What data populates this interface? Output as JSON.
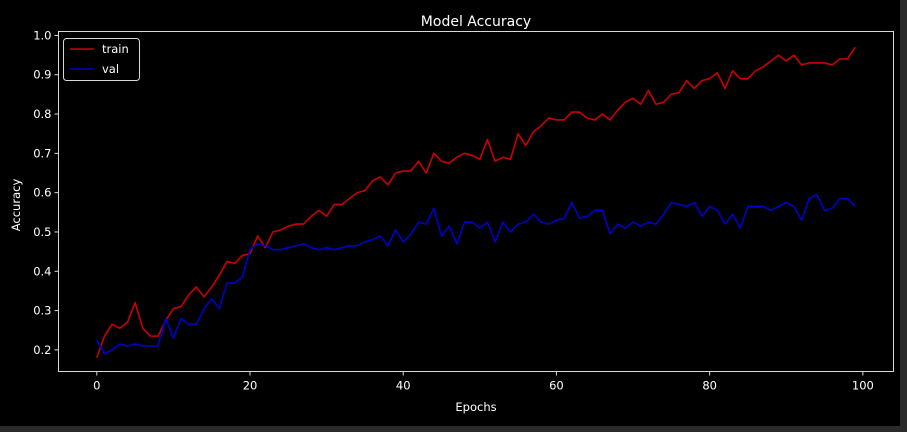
{
  "colors": {
    "figure_bg": "#000000",
    "page_bg": "#2b2b2b",
    "axes_edge": "#d8d8d8",
    "text": "#ffffff",
    "train": "#cc0000",
    "val": "#0000cc"
  },
  "chart_data": {
    "type": "line",
    "title": "Model Accuracy",
    "xlabel": "Epochs",
    "ylabel": "Accuracy",
    "xlim": [
      -5,
      104
    ],
    "ylim": [
      0.145,
      1.01
    ],
    "xticks": [
      0,
      20,
      40,
      60,
      80,
      100
    ],
    "yticks": [
      0.2,
      0.3,
      0.4,
      0.5,
      0.6,
      0.7,
      0.8,
      0.9,
      1.0
    ],
    "grid": false,
    "legend": {
      "placement": "top-left"
    },
    "series": [
      {
        "name": "train",
        "color": "#cc0000",
        "x": [
          0,
          1,
          2,
          3,
          4,
          5,
          6,
          7,
          8,
          9,
          10,
          11,
          12,
          13,
          14,
          15,
          16,
          17,
          18,
          19,
          20,
          21,
          22,
          23,
          24,
          25,
          26,
          27,
          28,
          29,
          30,
          31,
          32,
          33,
          34,
          35,
          36,
          37,
          38,
          39,
          40,
          41,
          42,
          43,
          44,
          45,
          46,
          47,
          48,
          49,
          50,
          51,
          52,
          53,
          54,
          55,
          56,
          57,
          58,
          59,
          60,
          61,
          62,
          63,
          64,
          65,
          66,
          67,
          68,
          69,
          70,
          71,
          72,
          73,
          74,
          75,
          76,
          77,
          78,
          79,
          80,
          81,
          82,
          83,
          84,
          85,
          86,
          87,
          88,
          89,
          90,
          91,
          92,
          93,
          94,
          95,
          96,
          97,
          98,
          99
        ],
        "values": [
          0.18,
          0.235,
          0.265,
          0.255,
          0.27,
          0.32,
          0.255,
          0.235,
          0.235,
          0.275,
          0.305,
          0.31,
          0.34,
          0.36,
          0.335,
          0.36,
          0.39,
          0.425,
          0.42,
          0.44,
          0.445,
          0.49,
          0.46,
          0.5,
          0.505,
          0.515,
          0.52,
          0.52,
          0.54,
          0.555,
          0.54,
          0.57,
          0.57,
          0.585,
          0.6,
          0.605,
          0.63,
          0.64,
          0.62,
          0.65,
          0.655,
          0.655,
          0.68,
          0.65,
          0.7,
          0.68,
          0.675,
          0.69,
          0.7,
          0.695,
          0.685,
          0.735,
          0.68,
          0.69,
          0.685,
          0.75,
          0.72,
          0.755,
          0.77,
          0.79,
          0.785,
          0.785,
          0.805,
          0.805,
          0.79,
          0.785,
          0.8,
          0.785,
          0.81,
          0.83,
          0.84,
          0.825,
          0.86,
          0.825,
          0.83,
          0.85,
          0.855,
          0.885,
          0.865,
          0.885,
          0.89,
          0.905,
          0.865,
          0.91,
          0.89,
          0.89,
          0.91,
          0.92,
          0.935,
          0.95,
          0.935,
          0.95,
          0.925,
          0.93,
          0.93,
          0.93,
          0.925,
          0.94,
          0.94,
          0.97
        ]
      },
      {
        "name": "val",
        "color": "#0000cc",
        "x": [
          0,
          1,
          2,
          3,
          4,
          5,
          6,
          7,
          8,
          9,
          10,
          11,
          12,
          13,
          14,
          15,
          16,
          17,
          18,
          19,
          20,
          21,
          22,
          23,
          24,
          25,
          26,
          27,
          28,
          29,
          30,
          31,
          32,
          33,
          34,
          35,
          36,
          37,
          38,
          39,
          40,
          41,
          42,
          43,
          44,
          45,
          46,
          47,
          48,
          49,
          50,
          51,
          52,
          53,
          54,
          55,
          56,
          57,
          58,
          59,
          60,
          61,
          62,
          63,
          64,
          65,
          66,
          67,
          68,
          69,
          70,
          71,
          72,
          73,
          74,
          75,
          76,
          77,
          78,
          79,
          80,
          81,
          82,
          83,
          84,
          85,
          86,
          87,
          88,
          89,
          90,
          91,
          92,
          93,
          94,
          95,
          96,
          97,
          98,
          99
        ],
        "values": [
          0.225,
          0.19,
          0.2,
          0.215,
          0.21,
          0.215,
          0.21,
          0.21,
          0.21,
          0.28,
          0.23,
          0.28,
          0.265,
          0.265,
          0.305,
          0.33,
          0.305,
          0.37,
          0.37,
          0.385,
          0.455,
          0.47,
          0.465,
          0.455,
          0.455,
          0.46,
          0.465,
          0.47,
          0.46,
          0.455,
          0.46,
          0.455,
          0.46,
          0.465,
          0.465,
          0.475,
          0.48,
          0.49,
          0.465,
          0.505,
          0.475,
          0.495,
          0.525,
          0.52,
          0.56,
          0.49,
          0.515,
          0.47,
          0.525,
          0.525,
          0.51,
          0.525,
          0.475,
          0.525,
          0.5,
          0.52,
          0.525,
          0.545,
          0.525,
          0.52,
          0.53,
          0.535,
          0.575,
          0.535,
          0.54,
          0.555,
          0.555,
          0.495,
          0.52,
          0.51,
          0.525,
          0.515,
          0.525,
          0.52,
          0.545,
          0.575,
          0.57,
          0.565,
          0.575,
          0.54,
          0.565,
          0.555,
          0.52,
          0.545,
          0.51,
          0.565,
          0.565,
          0.565,
          0.555,
          0.565,
          0.575,
          0.565,
          0.53,
          0.585,
          0.595,
          0.555,
          0.56,
          0.585,
          0.585,
          0.565
        ]
      }
    ]
  }
}
